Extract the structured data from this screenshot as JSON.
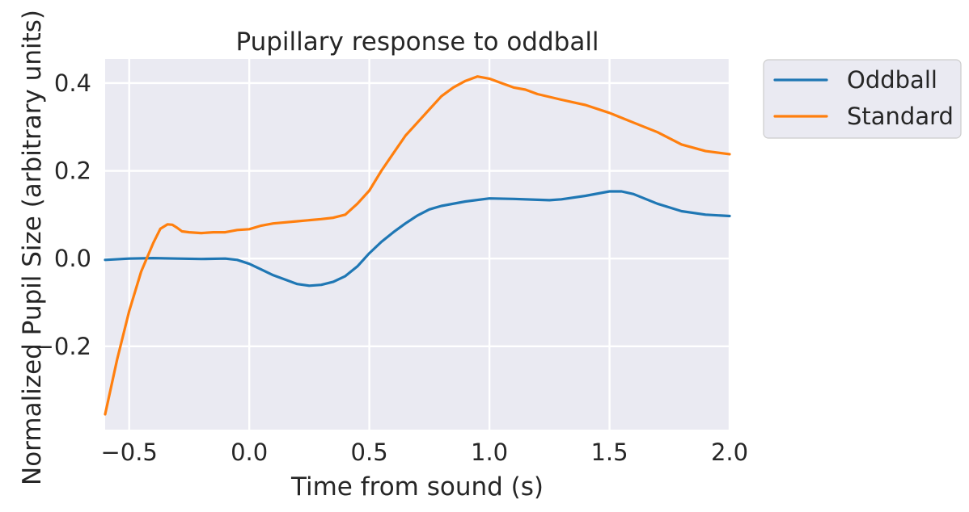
{
  "chart_data": {
    "type": "line",
    "title": "Pupillary response to oddball",
    "xlabel": "Time from sound (s)",
    "ylabel": "Normalized Pupil Size (arbitrary units)",
    "xlim": [
      -0.6,
      2.0
    ],
    "ylim": [
      -0.39,
      0.455
    ],
    "xticks": [
      -0.5,
      0.0,
      0.5,
      1.0,
      1.5,
      2.0
    ],
    "xtick_labels": [
      "−0.5",
      "0.0",
      "0.5",
      "1.0",
      "1.5",
      "2.0"
    ],
    "yticks": [
      -0.2,
      0.0,
      0.2,
      0.4
    ],
    "ytick_labels": [
      "−0.2",
      "0.0",
      "0.2",
      "0.4"
    ],
    "grid": true,
    "background": "#eaeaf2",
    "legend_position": "outside-top-right",
    "series": [
      {
        "name": "Oddball",
        "color": "#1f77b4",
        "x": [
          -0.6,
          -0.5,
          -0.4,
          -0.3,
          -0.2,
          -0.1,
          -0.05,
          0.0,
          0.05,
          0.1,
          0.15,
          0.2,
          0.25,
          0.3,
          0.35,
          0.4,
          0.45,
          0.5,
          0.55,
          0.6,
          0.65,
          0.7,
          0.75,
          0.8,
          0.9,
          1.0,
          1.1,
          1.2,
          1.25,
          1.3,
          1.4,
          1.5,
          1.55,
          1.6,
          1.7,
          1.8,
          1.9,
          2.0
        ],
        "y": [
          -0.003,
          0.0,
          0.001,
          0.0,
          -0.001,
          0.0,
          -0.003,
          -0.012,
          -0.025,
          -0.038,
          -0.048,
          -0.058,
          -0.062,
          -0.06,
          -0.053,
          -0.04,
          -0.018,
          0.012,
          0.038,
          0.06,
          0.08,
          0.098,
          0.112,
          0.12,
          0.13,
          0.137,
          0.136,
          0.134,
          0.133,
          0.135,
          0.143,
          0.153,
          0.153,
          0.147,
          0.125,
          0.108,
          0.1,
          0.097
        ]
      },
      {
        "name": "Standard",
        "color": "#ff7f0e",
        "x": [
          -0.6,
          -0.55,
          -0.5,
          -0.45,
          -0.4,
          -0.37,
          -0.34,
          -0.32,
          -0.3,
          -0.28,
          -0.25,
          -0.2,
          -0.15,
          -0.1,
          -0.05,
          0.0,
          0.05,
          0.1,
          0.2,
          0.3,
          0.35,
          0.4,
          0.45,
          0.5,
          0.55,
          0.6,
          0.65,
          0.7,
          0.75,
          0.8,
          0.85,
          0.9,
          0.95,
          1.0,
          1.05,
          1.1,
          1.15,
          1.2,
          1.3,
          1.4,
          1.5,
          1.6,
          1.7,
          1.8,
          1.9,
          2.0
        ],
        "y": [
          -0.355,
          -0.23,
          -0.12,
          -0.03,
          0.035,
          0.068,
          0.078,
          0.077,
          0.07,
          0.062,
          0.06,
          0.058,
          0.06,
          0.06,
          0.065,
          0.067,
          0.075,
          0.08,
          0.085,
          0.09,
          0.093,
          0.1,
          0.125,
          0.155,
          0.2,
          0.24,
          0.28,
          0.31,
          0.34,
          0.37,
          0.39,
          0.405,
          0.415,
          0.41,
          0.4,
          0.39,
          0.385,
          0.375,
          0.362,
          0.35,
          0.332,
          0.31,
          0.288,
          0.26,
          0.245,
          0.238
        ]
      }
    ]
  }
}
